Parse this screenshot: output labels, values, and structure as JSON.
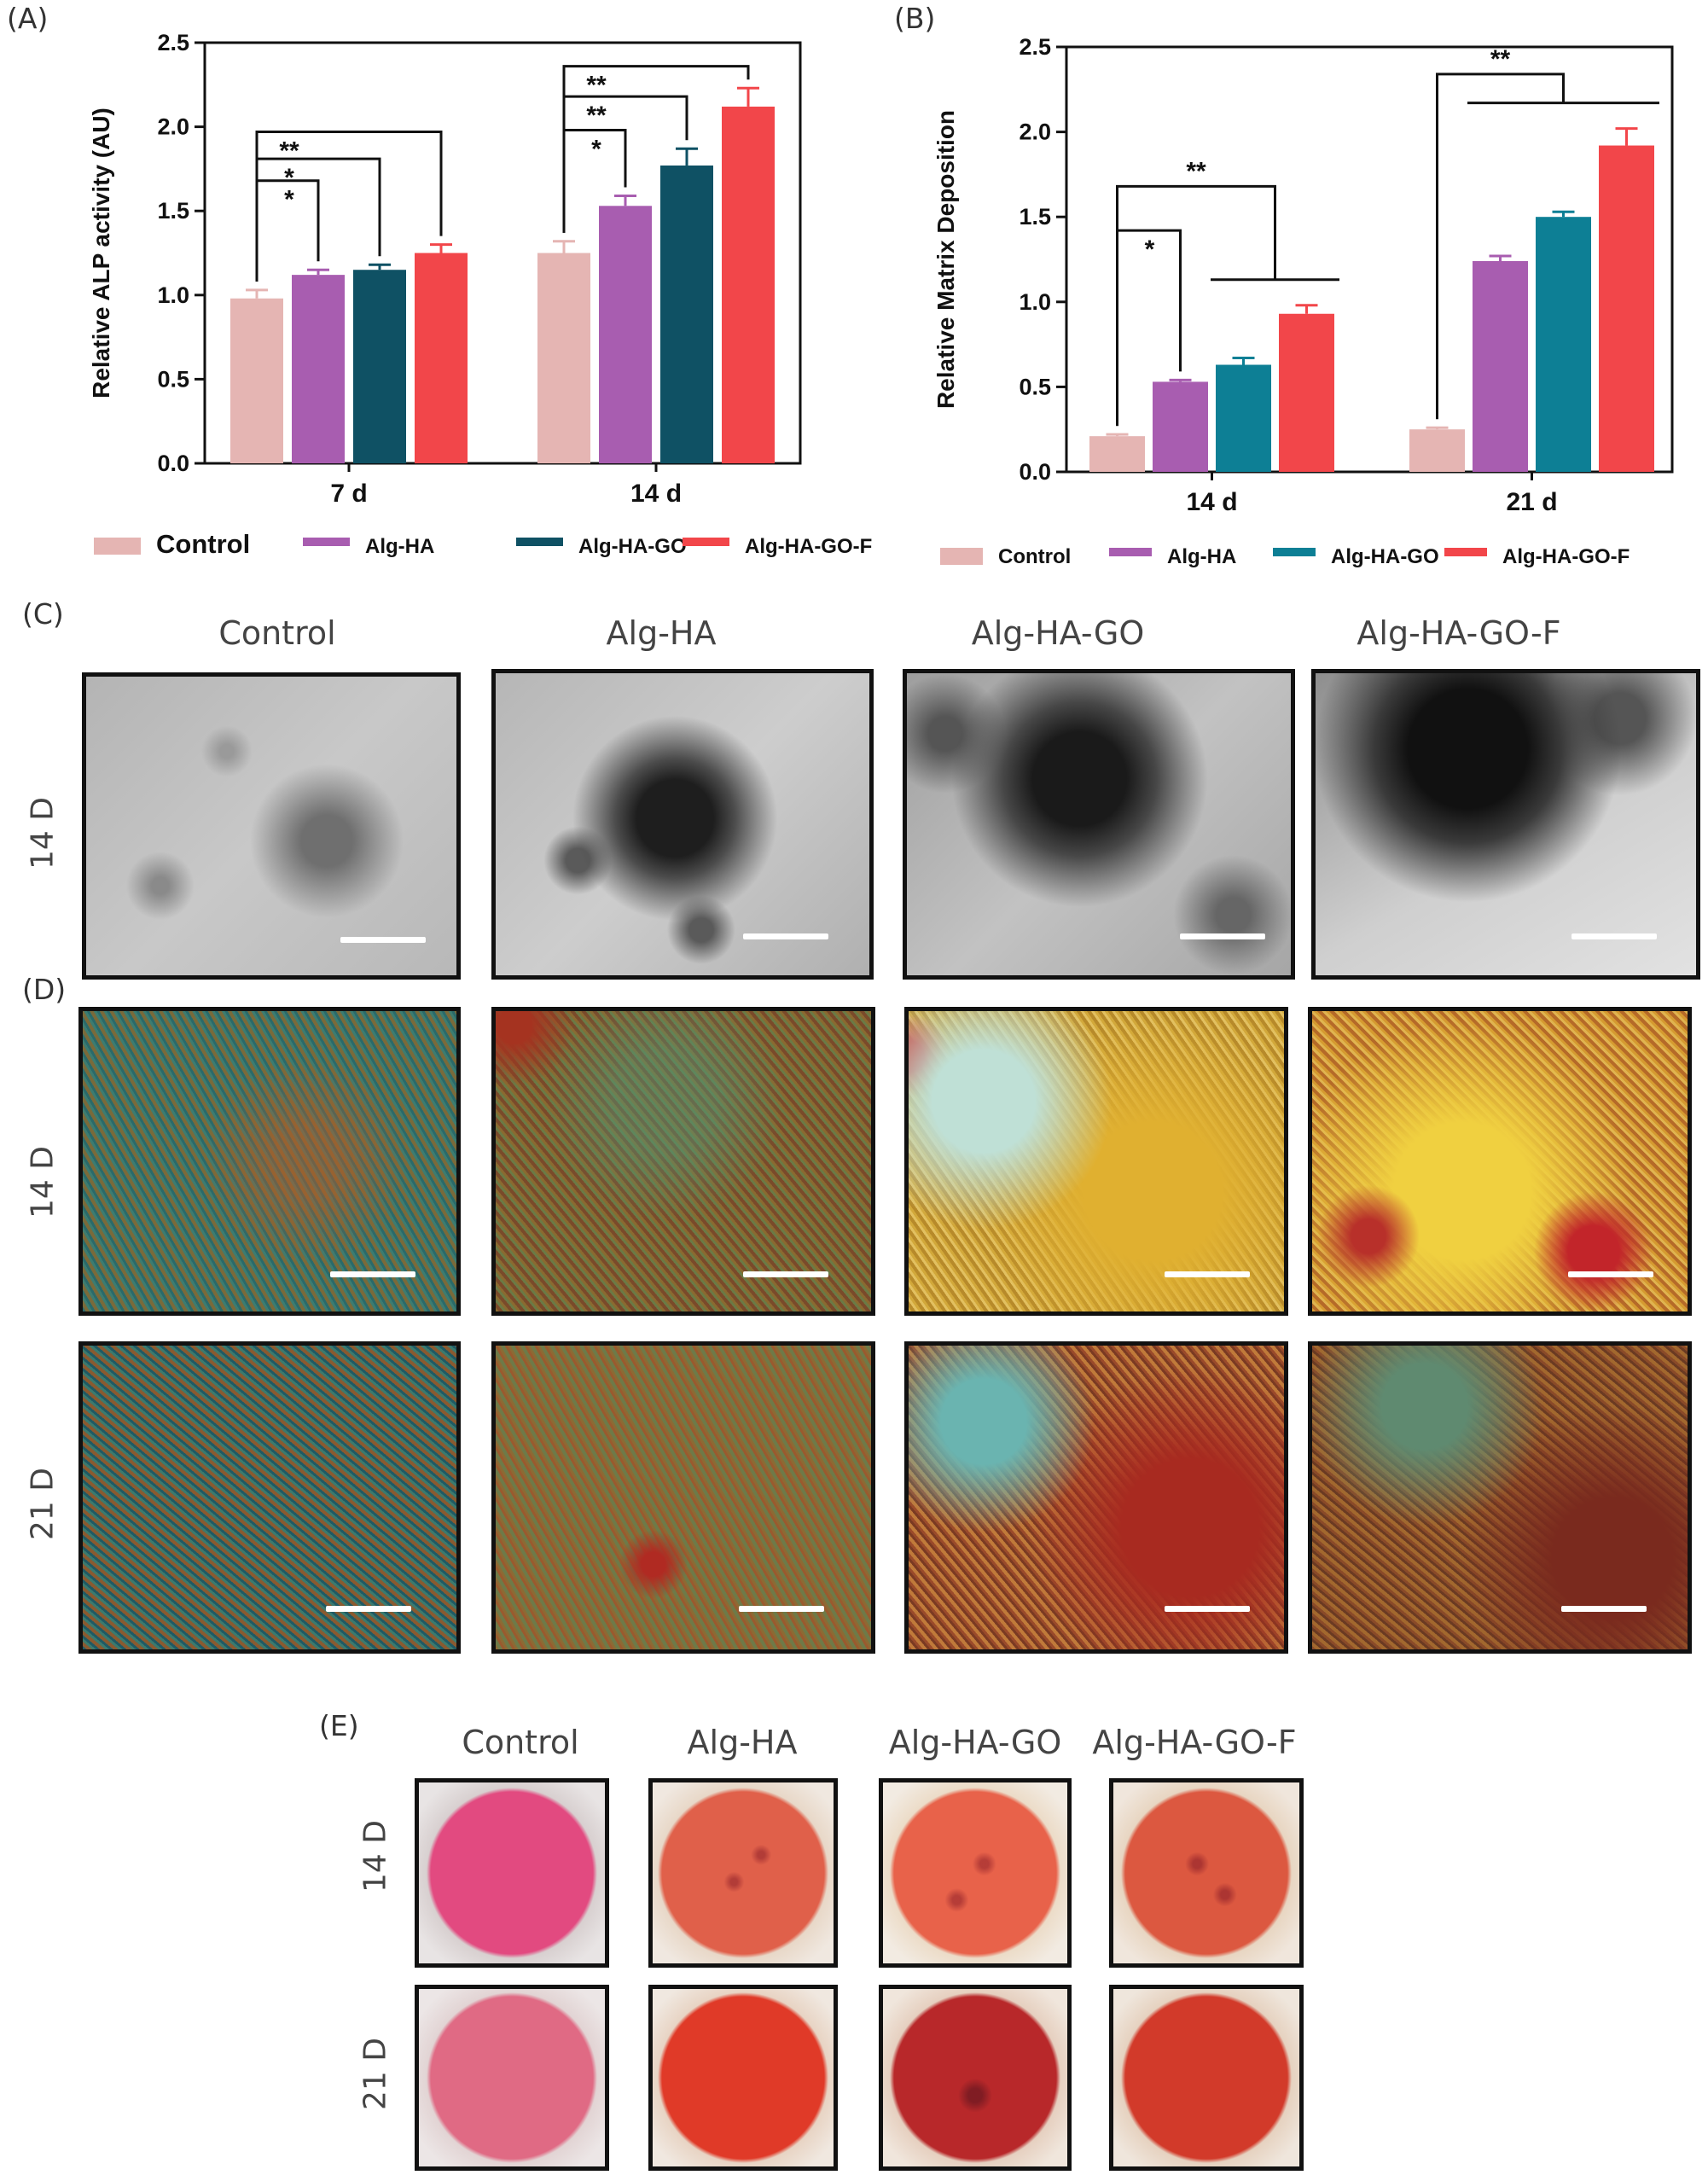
{
  "panels": {
    "A": "(A)",
    "B": "(B)",
    "C": "(C)",
    "D": "(D)",
    "E": "(E)"
  },
  "chart_data": [
    {
      "type": "bar",
      "panel": "(A)",
      "title": "",
      "xlabel": "",
      "ylabel": "Relative ALP activity (AU)",
      "categories": [
        "7 d",
        "14 d"
      ],
      "ylim": [
        0,
        2.5
      ],
      "yticks": [
        "0.0",
        "0.5",
        "1.0",
        "1.5",
        "2.0",
        "2.5"
      ],
      "series": [
        {
          "name": "Control",
          "color": "#e5b5b3",
          "values": [
            0.98,
            1.25
          ],
          "errors": [
            0.05,
            0.07
          ]
        },
        {
          "name": "Alg-HA",
          "color": "#a85db0",
          "values": [
            1.12,
            1.53
          ],
          "errors": [
            0.03,
            0.06
          ]
        },
        {
          "name": "Alg-HA-GO",
          "color": "#0f5164",
          "values": [
            1.15,
            1.77
          ],
          "errors": [
            0.03,
            0.1
          ]
        },
        {
          "name": "Alg-HA-GO-F",
          "color": "#f2464a",
          "values": [
            1.25,
            2.12
          ],
          "errors": [
            0.05,
            0.11
          ]
        }
      ],
      "significance": [
        {
          "label": "*",
          "group": 0,
          "from": 0,
          "to": 1,
          "level": 1.68
        },
        {
          "label": "*",
          "group": 0,
          "from": 0,
          "to": 2,
          "level": 1.81
        },
        {
          "label": "**",
          "group": 0,
          "from": 0,
          "to": 3,
          "level": 1.97
        },
        {
          "label": "*",
          "group": 1,
          "from": 0,
          "to": 1,
          "level": 1.98
        },
        {
          "label": "**",
          "group": 1,
          "from": 0,
          "to": 2,
          "level": 2.18
        },
        {
          "label": "**",
          "group": 1,
          "from": 0,
          "to": 3,
          "level": 2.36
        }
      ],
      "legend": [
        "Control",
        "Alg-HA",
        "Alg-HA-GO",
        "Alg-HA-GO-F"
      ]
    },
    {
      "type": "bar",
      "panel": "(B)",
      "title": "",
      "xlabel": "",
      "ylabel": "Relative Matrix Deposition",
      "categories": [
        "14 d",
        "21 d"
      ],
      "ylim": [
        0,
        2.5
      ],
      "yticks": [
        "0.0",
        "0.5",
        "1.0",
        "1.5",
        "2.0",
        "2.5"
      ],
      "series": [
        {
          "name": "Control",
          "color": "#e5b5b3",
          "values": [
            0.21,
            0.25
          ],
          "errors": [
            0.01,
            0.01
          ]
        },
        {
          "name": "Alg-HA",
          "color": "#a85db0",
          "values": [
            0.53,
            1.24
          ],
          "errors": [
            0.01,
            0.03
          ]
        },
        {
          "name": "Alg-HA-GO",
          "color": "#0d7f95",
          "values": [
            0.63,
            1.5
          ],
          "errors": [
            0.04,
            0.03
          ]
        },
        {
          "name": "Alg-HA-GO-F",
          "color": "#f2464a",
          "values": [
            0.93,
            1.92
          ],
          "errors": [
            0.05,
            0.1
          ]
        }
      ],
      "significance": [
        {
          "label": "*",
          "group": 0,
          "from": 0,
          "to": 1,
          "level": 1.42
        },
        {
          "label": "**",
          "group": 0,
          "from": 0,
          "to": "2-3",
          "level": 1.68
        },
        {
          "label": "**",
          "group": 1,
          "from": 0,
          "to": "1-3",
          "level": 2.34
        }
      ],
      "legend": [
        "Control",
        "Alg-HA",
        "Alg-HA-GO",
        "Alg-HA-GO-F"
      ]
    }
  ],
  "micrographs": {
    "columns": [
      "Control",
      "Alg-HA",
      "Alg-HA-GO",
      "Alg-HA-GO-F"
    ],
    "rows_c": [
      "14 D"
    ],
    "rows_d": [
      "14 D",
      "21 D"
    ]
  },
  "wells": {
    "columns": [
      "Control",
      "Alg-HA",
      "Alg-HA-GO",
      "Alg-HA-GO-F"
    ],
    "rows": [
      "14 D",
      "21 D"
    ]
  }
}
